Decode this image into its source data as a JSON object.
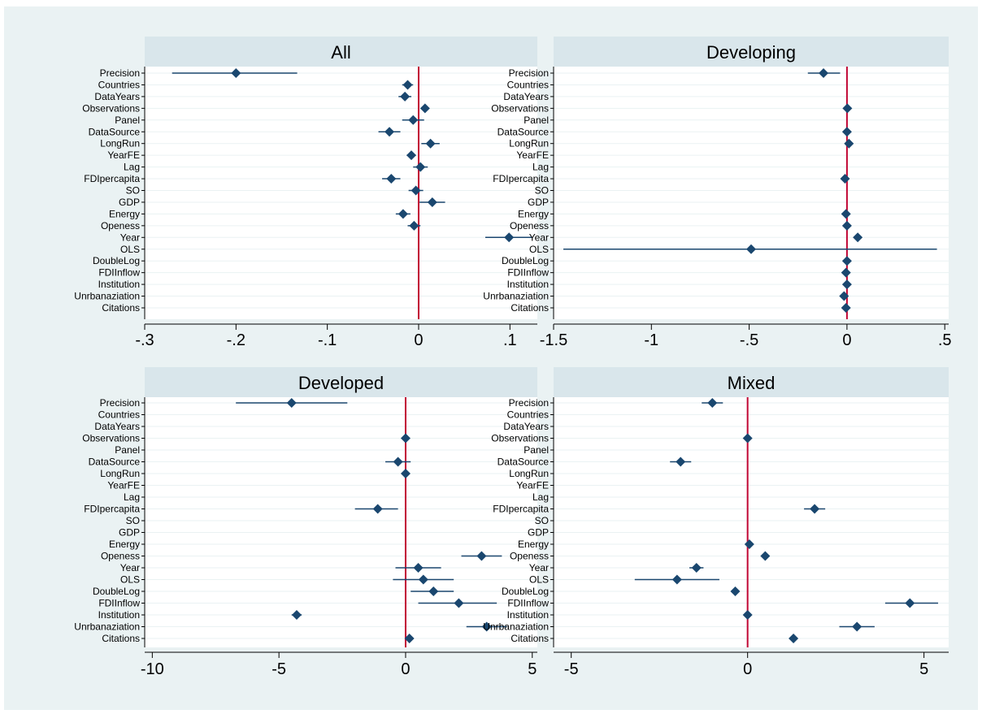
{
  "chart_data": [
    {
      "type": "scatter",
      "subtype": "coefficient-plot",
      "title": "All",
      "xlabel": "",
      "ylabel": "",
      "xlim": [
        -0.3,
        0.13
      ],
      "xticks": [
        -0.3,
        -0.2,
        -0.1,
        0,
        0.1
      ],
      "xtick_labels": [
        "-.3",
        "-.2",
        "-.1",
        "0",
        ".1"
      ],
      "reference_line": 0,
      "grid": true,
      "categories": [
        "Precision",
        "Countries",
        "DataYears",
        "Observations",
        "Panel",
        "DataSource",
        "LongRun",
        "YearFE",
        "Lag",
        "FDIpercapita",
        "SO",
        "GDP",
        "Energy",
        "Openess",
        "Year",
        "OLS",
        "DoubleLog",
        "FDIInflow",
        "Institution",
        "Unrbanaziation",
        "Citations"
      ],
      "estimates": [
        {
          "label": "Precision",
          "value": -0.2,
          "lo": -0.27,
          "hi": -0.133
        },
        {
          "label": "Countries",
          "value": -0.012,
          "lo": -0.018,
          "hi": -0.006
        },
        {
          "label": "DataYears",
          "value": -0.015,
          "lo": -0.022,
          "hi": -0.008
        },
        {
          "label": "Observations",
          "value": 0.007,
          "lo": 0.003,
          "hi": 0.011
        },
        {
          "label": "Panel",
          "value": -0.006,
          "lo": -0.018,
          "hi": 0.006
        },
        {
          "label": "DataSource",
          "value": -0.032,
          "lo": -0.044,
          "hi": -0.02
        },
        {
          "label": "LongRun",
          "value": 0.013,
          "lo": 0.003,
          "hi": 0.023
        },
        {
          "label": "YearFE",
          "value": -0.008,
          "lo": -0.013,
          "hi": -0.003
        },
        {
          "label": "Lag",
          "value": 0.002,
          "lo": -0.006,
          "hi": 0.01
        },
        {
          "label": "FDIpercapita",
          "value": -0.03,
          "lo": -0.04,
          "hi": -0.02
        },
        {
          "label": "SO",
          "value": -0.003,
          "lo": -0.011,
          "hi": 0.005
        },
        {
          "label": "GDP",
          "value": 0.015,
          "lo": 0.001,
          "hi": 0.029
        },
        {
          "label": "Energy",
          "value": -0.017,
          "lo": -0.025,
          "hi": -0.009
        },
        {
          "label": "Openess",
          "value": -0.005,
          "lo": -0.012,
          "hi": 0.002
        },
        {
          "label": "Year",
          "value": 0.099,
          "lo": 0.073,
          "hi": 0.124
        },
        {
          "label": "OLS",
          "value": null,
          "lo": null,
          "hi": null
        },
        {
          "label": "DoubleLog",
          "value": null,
          "lo": null,
          "hi": null
        },
        {
          "label": "FDIInflow",
          "value": null,
          "lo": null,
          "hi": null
        },
        {
          "label": "Institution",
          "value": null,
          "lo": null,
          "hi": null
        },
        {
          "label": "Unrbanaziation",
          "value": null,
          "lo": null,
          "hi": null
        },
        {
          "label": "Citations",
          "value": null,
          "lo": null,
          "hi": null
        }
      ]
    },
    {
      "type": "scatter",
      "subtype": "coefficient-plot",
      "title": "Developing",
      "xlabel": "",
      "ylabel": "",
      "xlim": [
        -1.5,
        0.52
      ],
      "xticks": [
        -1.5,
        -1,
        -0.5,
        0,
        0.5
      ],
      "xtick_labels": [
        "-1.5",
        "-1",
        "-.5",
        "0",
        ".5"
      ],
      "reference_line": 0,
      "grid": true,
      "categories": [
        "Precision",
        "Countries",
        "DataYears",
        "Observations",
        "Panel",
        "DataSource",
        "LongRun",
        "YearFE",
        "Lag",
        "FDIpercapita",
        "SO",
        "GDP",
        "Energy",
        "Openess",
        "Year",
        "OLS",
        "DoubleLog",
        "FDIInflow",
        "Institution",
        "Unrbanaziation",
        "Citations"
      ],
      "estimates": [
        {
          "label": "Precision",
          "value": -0.12,
          "lo": -0.2,
          "hi": -0.035
        },
        {
          "label": "Countries",
          "value": null,
          "lo": null,
          "hi": null
        },
        {
          "label": "DataYears",
          "value": null,
          "lo": null,
          "hi": null
        },
        {
          "label": "Observations",
          "value": 0.002,
          "lo": -0.006,
          "hi": 0.01
        },
        {
          "label": "Panel",
          "value": null,
          "lo": null,
          "hi": null
        },
        {
          "label": "DataSource",
          "value": 0.0,
          "lo": -0.008,
          "hi": 0.008
        },
        {
          "label": "LongRun",
          "value": 0.01,
          "lo": 0.002,
          "hi": 0.018
        },
        {
          "label": "YearFE",
          "value": null,
          "lo": null,
          "hi": null
        },
        {
          "label": "Lag",
          "value": null,
          "lo": null,
          "hi": null
        },
        {
          "label": "FDIpercapita",
          "value": -0.01,
          "lo": -0.018,
          "hi": -0.002
        },
        {
          "label": "SO",
          "value": null,
          "lo": null,
          "hi": null
        },
        {
          "label": "GDP",
          "value": null,
          "lo": null,
          "hi": null
        },
        {
          "label": "Energy",
          "value": -0.005,
          "lo": -0.013,
          "hi": 0.003
        },
        {
          "label": "Openess",
          "value": 0.0,
          "lo": -0.008,
          "hi": 0.008
        },
        {
          "label": "Year",
          "value": 0.055,
          "lo": 0.045,
          "hi": 0.065
        },
        {
          "label": "OLS",
          "value": -0.49,
          "lo": -1.45,
          "hi": 0.46
        },
        {
          "label": "DoubleLog",
          "value": 0.0,
          "lo": -0.008,
          "hi": 0.008
        },
        {
          "label": "FDIInflow",
          "value": -0.005,
          "lo": -0.013,
          "hi": 0.003
        },
        {
          "label": "Institution",
          "value": 0.0,
          "lo": -0.008,
          "hi": 0.008
        },
        {
          "label": "Unrbanaziation",
          "value": -0.015,
          "lo": -0.023,
          "hi": -0.007
        },
        {
          "label": "Citations",
          "value": -0.005,
          "lo": -0.013,
          "hi": 0.003
        }
      ]
    },
    {
      "type": "scatter",
      "subtype": "coefficient-plot",
      "title": "Developed",
      "xlabel": "",
      "ylabel": "",
      "xlim": [
        -10.3,
        5.2
      ],
      "xticks": [
        -10,
        -5,
        0,
        5
      ],
      "xtick_labels": [
        "-10",
        "-5",
        "0",
        "5"
      ],
      "reference_line": 0,
      "grid": true,
      "categories": [
        "Precision",
        "Countries",
        "DataYears",
        "Observations",
        "Panel",
        "DataSource",
        "LongRun",
        "YearFE",
        "Lag",
        "FDIpercapita",
        "SO",
        "GDP",
        "Energy",
        "Openess",
        "Year",
        "OLS",
        "DoubleLog",
        "FDIInflow",
        "Institution",
        "Unrbanaziation",
        "Citations"
      ],
      "estimates": [
        {
          "label": "Precision",
          "value": -4.5,
          "lo": -6.7,
          "hi": -2.3
        },
        {
          "label": "Countries",
          "value": null,
          "lo": null,
          "hi": null
        },
        {
          "label": "DataYears",
          "value": null,
          "lo": null,
          "hi": null
        },
        {
          "label": "Observations",
          "value": 0.0,
          "lo": -0.1,
          "hi": 0.1
        },
        {
          "label": "Panel",
          "value": null,
          "lo": null,
          "hi": null
        },
        {
          "label": "DataSource",
          "value": -0.3,
          "lo": -0.8,
          "hi": 0.2
        },
        {
          "label": "LongRun",
          "value": 0.0,
          "lo": -0.1,
          "hi": 0.1
        },
        {
          "label": "YearFE",
          "value": null,
          "lo": null,
          "hi": null
        },
        {
          "label": "Lag",
          "value": null,
          "lo": null,
          "hi": null
        },
        {
          "label": "FDIpercapita",
          "value": -1.1,
          "lo": -2.0,
          "hi": -0.3
        },
        {
          "label": "SO",
          "value": null,
          "lo": null,
          "hi": null
        },
        {
          "label": "GDP",
          "value": null,
          "lo": null,
          "hi": null
        },
        {
          "label": "Energy",
          "value": null,
          "lo": null,
          "hi": null
        },
        {
          "label": "Openess",
          "value": 3.0,
          "lo": 2.2,
          "hi": 3.8
        },
        {
          "label": "Year",
          "value": 0.5,
          "lo": -0.4,
          "hi": 1.4
        },
        {
          "label": "OLS",
          "value": 0.7,
          "lo": -0.5,
          "hi": 1.9
        },
        {
          "label": "DoubleLog",
          "value": 1.1,
          "lo": 0.2,
          "hi": 1.9
        },
        {
          "label": "FDIInflow",
          "value": 2.1,
          "lo": 0.5,
          "hi": 3.6
        },
        {
          "label": "Institution",
          "value": -4.3,
          "lo": -4.5,
          "hi": -4.1
        },
        {
          "label": "Unrbanaziation",
          "value": 3.2,
          "lo": 2.4,
          "hi": 4.0
        },
        {
          "label": "Citations",
          "value": 0.15,
          "lo": 0.05,
          "hi": 0.25
        }
      ]
    },
    {
      "type": "scatter",
      "subtype": "coefficient-plot",
      "title": "Mixed",
      "xlabel": "",
      "ylabel": "",
      "xlim": [
        -5.5,
        5.7
      ],
      "xticks": [
        -5,
        0,
        5
      ],
      "xtick_labels": [
        "-5",
        "0",
        "5"
      ],
      "reference_line": 0,
      "grid": true,
      "categories": [
        "Precision",
        "Countries",
        "DataYears",
        "Observations",
        "Panel",
        "DataSource",
        "LongRun",
        "YearFE",
        "Lag",
        "FDIpercapita",
        "SO",
        "GDP",
        "Energy",
        "Openess",
        "Year",
        "OLS",
        "DoubleLog",
        "FDIInflow",
        "Institution",
        "Unrbanaziation",
        "Citations"
      ],
      "estimates": [
        {
          "label": "Precision",
          "value": -1.0,
          "lo": -1.3,
          "hi": -0.7
        },
        {
          "label": "Countries",
          "value": null,
          "lo": null,
          "hi": null
        },
        {
          "label": "DataYears",
          "value": null,
          "lo": null,
          "hi": null
        },
        {
          "label": "Observations",
          "value": 0.0,
          "lo": -0.08,
          "hi": 0.08
        },
        {
          "label": "Panel",
          "value": null,
          "lo": null,
          "hi": null
        },
        {
          "label": "DataSource",
          "value": -1.9,
          "lo": -2.2,
          "hi": -1.6
        },
        {
          "label": "LongRun",
          "value": null,
          "lo": null,
          "hi": null
        },
        {
          "label": "YearFE",
          "value": null,
          "lo": null,
          "hi": null
        },
        {
          "label": "Lag",
          "value": null,
          "lo": null,
          "hi": null
        },
        {
          "label": "FDIpercapita",
          "value": 1.9,
          "lo": 1.6,
          "hi": 2.2
        },
        {
          "label": "SO",
          "value": null,
          "lo": null,
          "hi": null
        },
        {
          "label": "GDP",
          "value": null,
          "lo": null,
          "hi": null
        },
        {
          "label": "Energy",
          "value": 0.05,
          "lo": -0.03,
          "hi": 0.13
        },
        {
          "label": "Openess",
          "value": 0.5,
          "lo": 0.42,
          "hi": 0.58
        },
        {
          "label": "Year",
          "value": -1.45,
          "lo": -1.65,
          "hi": -1.25
        },
        {
          "label": "OLS",
          "value": -2.0,
          "lo": -3.2,
          "hi": -0.8
        },
        {
          "label": "DoubleLog",
          "value": -0.35,
          "lo": -0.45,
          "hi": -0.25
        },
        {
          "label": "FDIInflow",
          "value": 4.6,
          "lo": 3.9,
          "hi": 5.4
        },
        {
          "label": "Institution",
          "value": 0.0,
          "lo": -0.08,
          "hi": 0.08
        },
        {
          "label": "Unrbanaziation",
          "value": 3.1,
          "lo": 2.6,
          "hi": 3.6
        },
        {
          "label": "Citations",
          "value": 1.3,
          "lo": 1.2,
          "hi": 1.4
        }
      ]
    }
  ],
  "colors": {
    "page_background": "#eaf2f3",
    "panel_background": "#ffffff",
    "title_strip": "#d9e6eb",
    "marker": "#1a476f",
    "reference_line": "#c10534",
    "gridline": "#eaf2f3",
    "axis": "#000000"
  },
  "marker_shape": "diamond"
}
